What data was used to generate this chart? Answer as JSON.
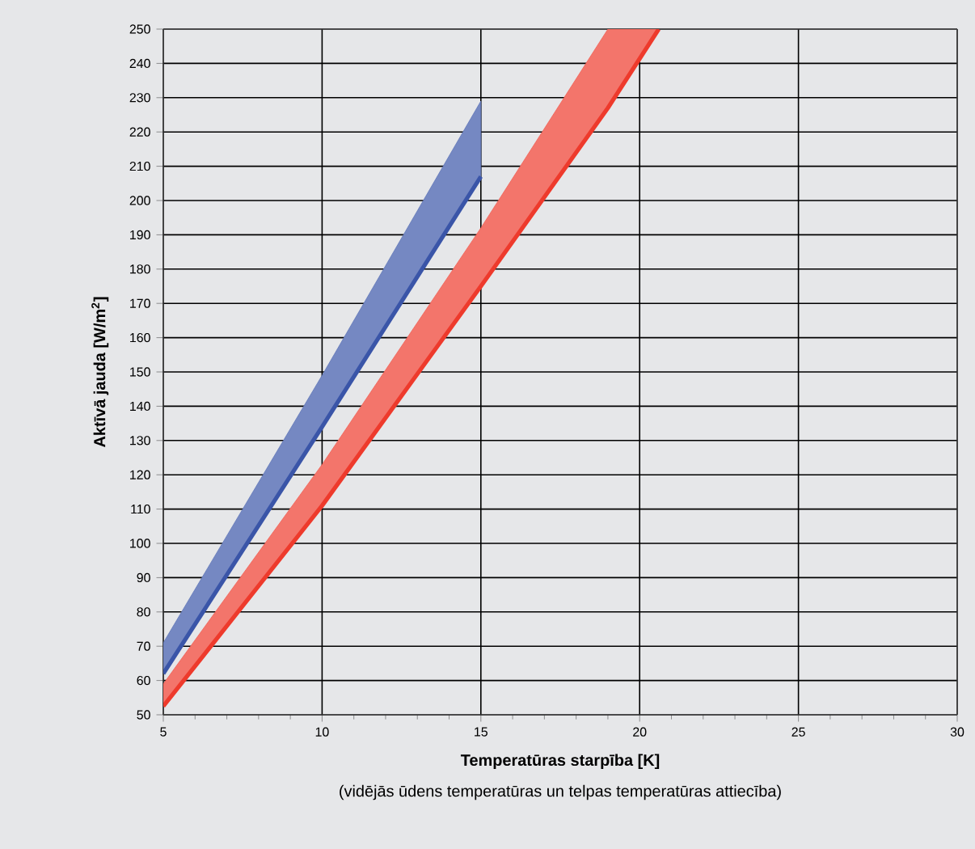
{
  "chart_data": {
    "type": "line",
    "xlabel": "Temperatūras starpība [K]",
    "ylabel": "Aktīvā jauda [W/m$^{2}$]",
    "annotations": [
      "(vidējās ūdens temperatūras un telpas temperatūras attiecība)"
    ],
    "xlim": [
      5,
      30
    ],
    "xticks": [
      5,
      10,
      15,
      20,
      25,
      30
    ],
    "ylim": [
      50,
      250
    ],
    "yticks": [
      50,
      60,
      70,
      80,
      90,
      100,
      110,
      120,
      130,
      140,
      150,
      160,
      170,
      180,
      190,
      200,
      210,
      220,
      230,
      240,
      250
    ],
    "grid": true,
    "series": [
      {
        "color": "#3a55a8",
        "x": [
          5,
          10,
          15
        ],
        "values": [
          62,
          134,
          207
        ],
        "lower": [
          62,
          134,
          207
        ],
        "upper": [
          71,
          149,
          229
        ]
      },
      {
        "color": "#ee3a2c",
        "x": [
          5,
          10,
          15,
          19,
          20.6
        ],
        "values": [
          52.5,
          111,
          175,
          227,
          250
        ],
        "lower": [
          52.5,
          111,
          175,
          227,
          250
        ],
        "upper": [
          59,
          123,
          192,
          250,
          250
        ]
      }
    ]
  }
}
